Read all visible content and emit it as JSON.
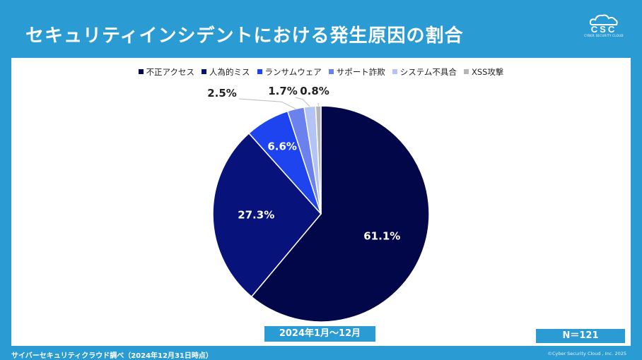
{
  "header": {
    "title": "セキュリティインシデントにおける発生原因の割合",
    "logo_text": "CSC",
    "logo_subtext": "CYBER SECURITY CLOUD"
  },
  "footer": {
    "period": "2024年1月～12月",
    "n_label": "N＝121",
    "source": "サイバーセキュリティクラウド調べ（2024年12月31日時点）",
    "copyright": "©Cyber Security Cloud , Inc. 2025"
  },
  "chart_data": {
    "type": "pie",
    "title": "セキュリティインシデントにおける発生原因の割合",
    "legend_position": "top",
    "slices": [
      {
        "label": "不正アクセス",
        "value": 61.1,
        "display": "61.1%",
        "color": "#02074a"
      },
      {
        "label": "人為的ミス",
        "value": 27.3,
        "display": "27.3%",
        "color": "#07137a"
      },
      {
        "label": "ランサムウェア",
        "value": 6.6,
        "display": "6.6%",
        "color": "#1e44f0"
      },
      {
        "label": "サポート詐欺",
        "value": 2.5,
        "display": "2.5%",
        "color": "#6b82ee"
      },
      {
        "label": "システム不具合",
        "value": 1.7,
        "display": "1.7%",
        "color": "#b3c3f6"
      },
      {
        "label": "XSS攻撃",
        "value": 0.8,
        "display": "0.8%",
        "color": "#b5b5b5"
      }
    ]
  }
}
